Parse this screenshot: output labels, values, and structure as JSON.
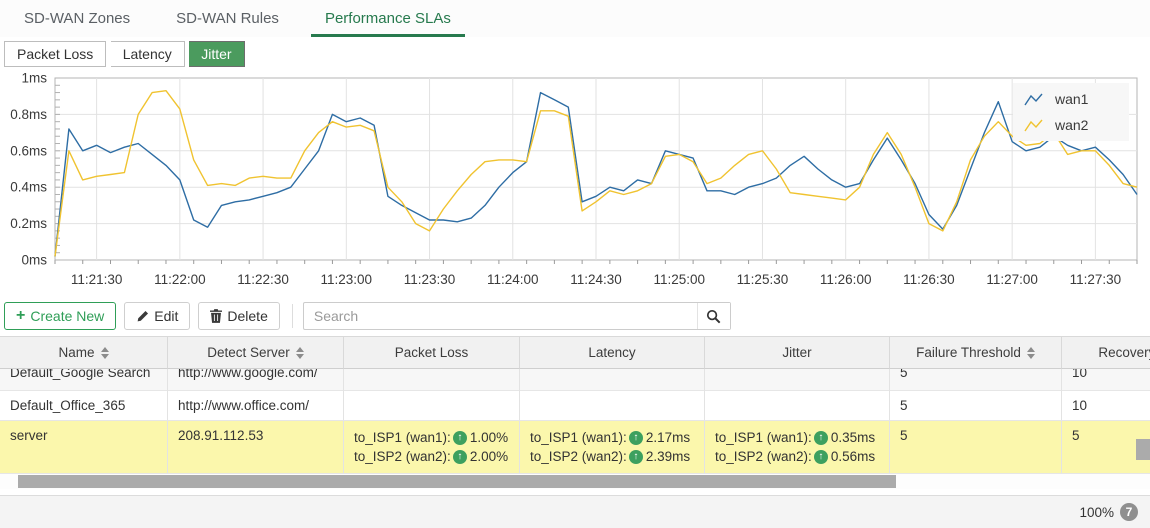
{
  "tabs": {
    "items": [
      {
        "label": "SD-WAN Zones",
        "active": false
      },
      {
        "label": "SD-WAN Rules",
        "active": false
      },
      {
        "label": "Performance SLAs",
        "active": true
      }
    ]
  },
  "subtabs": {
    "items": [
      {
        "label": "Packet Loss",
        "active": false
      },
      {
        "label": "Latency",
        "active": false
      },
      {
        "label": "Jitter",
        "active": true
      }
    ]
  },
  "chart_data": {
    "type": "line",
    "title": "",
    "xlabel": "",
    "ylabel": "",
    "ylim": [
      0,
      1
    ],
    "y_ticks": [
      "1ms",
      "0.8ms",
      "0.6ms",
      "0.4ms",
      "0.2ms",
      "0ms"
    ],
    "x_ticks": [
      "11:21:30",
      "11:22:00",
      "11:22:30",
      "11:23:00",
      "11:23:30",
      "11:24:00",
      "11:24:30",
      "11:25:00",
      "11:25:30",
      "11:26:00",
      "11:26:30",
      "11:27:00",
      "11:27:30"
    ],
    "x_range_s": 390,
    "first_tick_s": 15,
    "tick_step_s": 30,
    "sample_step_s": 5,
    "grid": true,
    "legend_position": "top-right",
    "series": [
      {
        "name": "wan1",
        "color": "#2e6da4",
        "values": [
          0.02,
          0.72,
          0.6,
          0.63,
          0.59,
          0.62,
          0.64,
          0.58,
          0.52,
          0.44,
          0.22,
          0.18,
          0.3,
          0.32,
          0.33,
          0.35,
          0.37,
          0.4,
          0.5,
          0.6,
          0.8,
          0.76,
          0.78,
          0.74,
          0.35,
          0.3,
          0.26,
          0.22,
          0.22,
          0.21,
          0.23,
          0.3,
          0.4,
          0.48,
          0.54,
          0.92,
          0.88,
          0.84,
          0.32,
          0.35,
          0.4,
          0.38,
          0.44,
          0.42,
          0.6,
          0.58,
          0.56,
          0.38,
          0.38,
          0.36,
          0.4,
          0.42,
          0.45,
          0.52,
          0.57,
          0.5,
          0.44,
          0.4,
          0.42,
          0.55,
          0.67,
          0.55,
          0.42,
          0.25,
          0.17,
          0.3,
          0.5,
          0.7,
          0.87,
          0.65,
          0.6,
          0.62,
          0.68,
          0.63,
          0.6,
          0.62,
          0.55,
          0.47,
          0.36
        ]
      },
      {
        "name": "wan2",
        "color": "#f0c330",
        "values": [
          0.02,
          0.6,
          0.44,
          0.46,
          0.47,
          0.48,
          0.8,
          0.92,
          0.93,
          0.83,
          0.55,
          0.41,
          0.42,
          0.41,
          0.45,
          0.46,
          0.45,
          0.45,
          0.6,
          0.7,
          0.76,
          0.73,
          0.74,
          0.71,
          0.4,
          0.32,
          0.2,
          0.16,
          0.28,
          0.38,
          0.47,
          0.54,
          0.55,
          0.55,
          0.54,
          0.82,
          0.82,
          0.79,
          0.27,
          0.32,
          0.38,
          0.36,
          0.38,
          0.42,
          0.57,
          0.58,
          0.54,
          0.42,
          0.45,
          0.52,
          0.58,
          0.6,
          0.5,
          0.37,
          0.36,
          0.35,
          0.34,
          0.33,
          0.4,
          0.58,
          0.7,
          0.58,
          0.4,
          0.2,
          0.16,
          0.32,
          0.55,
          0.68,
          0.76,
          0.68,
          0.63,
          0.64,
          0.7,
          0.58,
          0.6,
          0.6,
          0.52,
          0.42,
          0.4
        ]
      }
    ]
  },
  "toolbar": {
    "create_label": "Create New",
    "edit_label": "Edit",
    "delete_label": "Delete",
    "search_placeholder": "Search"
  },
  "table": {
    "columns": [
      {
        "label": "Name",
        "sortable": true
      },
      {
        "label": "Detect Server",
        "sortable": true
      },
      {
        "label": "Packet Loss",
        "sortable": false
      },
      {
        "label": "Latency",
        "sortable": false
      },
      {
        "label": "Jitter",
        "sortable": false
      },
      {
        "label": "Failure Threshold",
        "sortable": true
      },
      {
        "label": "Recovery Th",
        "sortable": false
      }
    ],
    "rows": [
      {
        "name": "Default_Google Search",
        "detect_server": "http://www.google.com/",
        "failure_threshold": "5",
        "recovery_threshold": "10",
        "highlight": false
      },
      {
        "name": "Default_Office_365",
        "detect_server": "http://www.office.com/",
        "failure_threshold": "5",
        "recovery_threshold": "10",
        "highlight": false
      },
      {
        "name": "server",
        "detect_server": "208.91.112.53",
        "packet_loss": [
          {
            "label": "to_ISP1 (wan1):",
            "value": "1.00%"
          },
          {
            "label": "to_ISP2 (wan2):",
            "value": "2.00%"
          }
        ],
        "latency": [
          {
            "label": "to_ISP1 (wan1):",
            "value": "2.17ms"
          },
          {
            "label": "to_ISP2 (wan2):",
            "value": "2.39ms"
          }
        ],
        "jitter": [
          {
            "label": "to_ISP1 (wan1):",
            "value": "0.35ms"
          },
          {
            "label": "to_ISP2 (wan2):",
            "value": "0.56ms"
          }
        ],
        "failure_threshold": "5",
        "recovery_threshold": "5",
        "highlight": true
      }
    ]
  },
  "footer": {
    "zoom_level": "100%",
    "badge_count": "7"
  },
  "icons": {
    "plus": "+",
    "up_arrow": "↑"
  },
  "colors": {
    "accent_green": "#2f9e57",
    "active_tab_green": "#277a4e",
    "subtab_active_bg": "#4b9b5e",
    "row_highlight": "#fbf7ac",
    "status_up_circle": "#3da05f",
    "series_wan1": "#2e6da4",
    "series_wan2": "#f0c330"
  }
}
